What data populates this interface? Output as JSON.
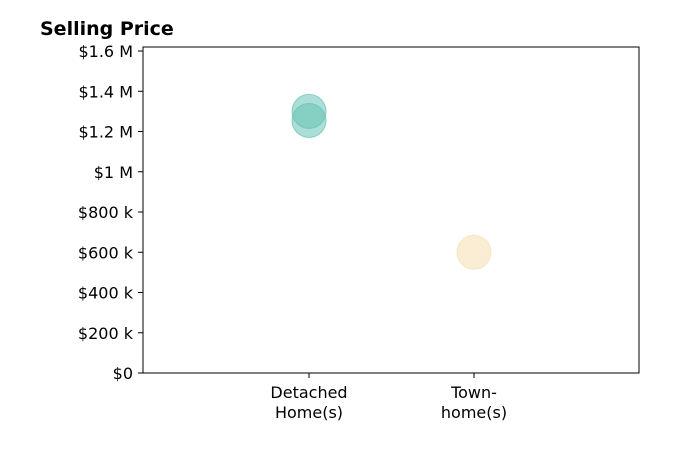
{
  "chart_data": {
    "type": "scatter",
    "title": "Selling Price",
    "xlabel": "",
    "ylabel": "",
    "categories": [
      [
        "Detached",
        "Home(s)"
      ],
      [
        "Town-",
        "home(s)"
      ]
    ],
    "ylim": [
      0,
      1620000
    ],
    "yticks": [
      0,
      200000,
      400000,
      600000,
      800000,
      1000000,
      1200000,
      1400000,
      1600000
    ],
    "yticklabels": [
      "$0",
      "$200 k",
      "$400 k",
      "$600 k",
      "$800 k",
      "$1 M",
      "$1.2 M",
      "$1.4 M",
      "$1.6 M"
    ],
    "grid": false,
    "points": [
      {
        "category": 0,
        "y": 1300000,
        "color": "#66c2b5"
      },
      {
        "category": 0,
        "y": 1255000,
        "color": "#66c2b5"
      },
      {
        "category": 1,
        "y": 600000,
        "color": "#f5deb0"
      }
    ]
  }
}
